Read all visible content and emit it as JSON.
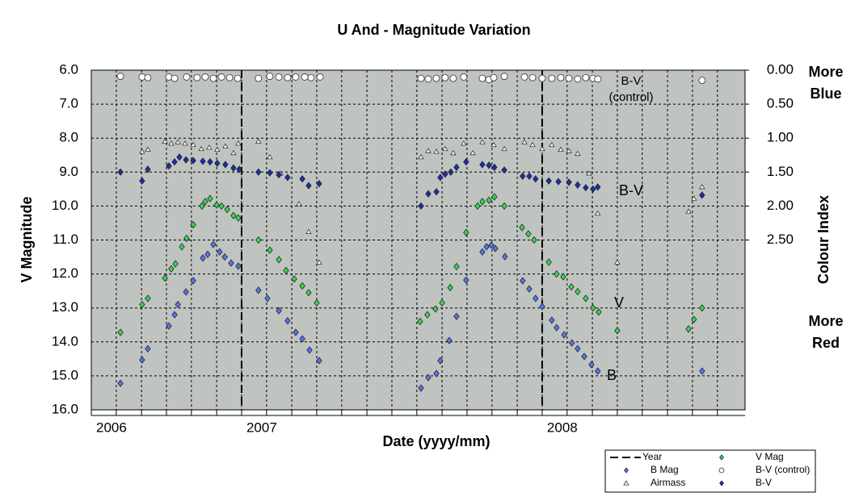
{
  "chart_data": {
    "type": "scatter",
    "title": "U And - Magnitude Variation",
    "xlabel": "Date (yyyy/mm)",
    "ylabel": "V Magnitude",
    "y2label": "Colour Index",
    "xlim": [
      2006.5,
      2008.675
    ],
    "xticks": [
      {
        "value": 2006.5,
        "label": "2006"
      },
      {
        "value": 2007,
        "label": "2007"
      },
      {
        "value": 2008,
        "label": "2008"
      }
    ],
    "xgrid": [
      2006.5,
      2006.583,
      2006.667,
      2006.75,
      2006.833,
      2006.917,
      2007,
      2007.083,
      2007.167,
      2007.25,
      2007.333,
      2007.417,
      2007.5,
      2007.583,
      2007.667,
      2007.75,
      2007.833,
      2007.917,
      2008,
      2008.083,
      2008.167,
      2008.25,
      2008.333,
      2008.417,
      2008.5,
      2008.583
    ],
    "ylim": [
      6,
      16
    ],
    "y_inverted": true,
    "yticks": [
      {
        "value": 6,
        "label": "6.0"
      },
      {
        "value": 7,
        "label": "7.0"
      },
      {
        "value": 8,
        "label": "8.0"
      },
      {
        "value": 9,
        "label": "9.0"
      },
      {
        "value": 10,
        "label": "10.0"
      },
      {
        "value": 11,
        "label": "11.0"
      },
      {
        "value": 12,
        "label": "12.0"
      },
      {
        "value": 13,
        "label": "13.0"
      },
      {
        "value": 14,
        "label": "14.0"
      },
      {
        "value": 15,
        "label": "15.0"
      },
      {
        "value": 16,
        "label": "16.0"
      }
    ],
    "y2lim": [
      0,
      5
    ],
    "y2ticks": [
      {
        "value": 0,
        "label": "0.00"
      },
      {
        "value": 0.5,
        "label": "0.50"
      },
      {
        "value": 1,
        "label": "1.00"
      },
      {
        "value": 1.5,
        "label": "1.50"
      },
      {
        "value": 2,
        "label": "2.00"
      },
      {
        "value": 2.5,
        "label": "2.50"
      }
    ],
    "grid": true,
    "legend": "bottom-right",
    "year_lines": {
      "name": "Year",
      "color": "#000000",
      "x": [
        2007,
        2008
      ]
    },
    "annotations": {
      "control": [
        "B-V",
        "(control)"
      ],
      "bv": "B-V",
      "v": "V",
      "b": "B",
      "blue": [
        "More",
        "Blue"
      ],
      "red": [
        "More",
        "Red"
      ]
    },
    "series": [
      {
        "name": "V Mag",
        "color": "#33dd44",
        "marker": "diamond",
        "x": [
          2006.597,
          2006.669,
          2006.688,
          2006.745,
          2006.766,
          2006.78,
          2006.801,
          2006.817,
          2006.839,
          2006.868,
          2006.879,
          2006.895,
          2006.917,
          2006.933,
          2006.952,
          2006.973,
          2006.989,
          2007.056,
          2007.094,
          2007.124,
          2007.148,
          2007.175,
          2007.202,
          2007.223,
          2007.25,
          2007.594,
          2007.618,
          2007.645,
          2007.667,
          2007.694,
          2007.715,
          2007.747,
          2007.785,
          2007.801,
          2007.823,
          2007.841,
          2007.874,
          2007.933,
          2007.954,
          2007.973,
          2008.022,
          2008.048,
          2008.07,
          2008.097,
          2008.118,
          2008.145,
          2008.169,
          2008.188,
          2008.25,
          2008.487,
          2008.505,
          2008.532
        ],
        "values": [
          13.72,
          12.9,
          12.72,
          12.12,
          11.85,
          11.7,
          11.2,
          10.95,
          10.55,
          10.0,
          9.87,
          9.78,
          9.97,
          10.0,
          10.1,
          10.28,
          10.35,
          11.0,
          11.3,
          11.58,
          11.9,
          12.15,
          12.35,
          12.55,
          12.85,
          13.4,
          13.2,
          13.03,
          12.85,
          12.4,
          11.78,
          10.78,
          10.0,
          9.87,
          9.83,
          9.73,
          10.0,
          10.63,
          10.82,
          11.0,
          11.65,
          12.0,
          12.08,
          12.38,
          12.52,
          12.72,
          13.0,
          13.12,
          13.67,
          13.62,
          13.34,
          13.0
        ]
      },
      {
        "name": "B Mag",
        "color": "#5577ee",
        "marker": "diamond",
        "x": [
          2006.597,
          2006.669,
          2006.688,
          2006.758,
          2006.777,
          2006.788,
          2006.815,
          2006.839,
          2006.871,
          2006.887,
          2006.906,
          2006.927,
          2006.944,
          2006.965,
          2006.989,
          2007.056,
          2007.086,
          2007.124,
          2007.153,
          2007.18,
          2007.202,
          2007.226,
          2007.258,
          2007.597,
          2007.621,
          2007.648,
          2007.661,
          2007.691,
          2007.715,
          2007.747,
          2007.801,
          2007.815,
          2007.831,
          2007.844,
          2007.876,
          2007.935,
          2007.957,
          2007.978,
          2008.0,
          2008.032,
          2008.048,
          2008.073,
          2008.099,
          2008.118,
          2008.14,
          2008.164,
          2008.185,
          2008.532
        ],
        "values": [
          15.22,
          14.53,
          14.2,
          13.53,
          13.2,
          12.9,
          12.53,
          12.2,
          11.53,
          11.42,
          11.13,
          11.35,
          11.5,
          11.68,
          11.77,
          12.48,
          12.72,
          13.08,
          13.38,
          13.72,
          13.91,
          14.24,
          14.55,
          15.36,
          15.05,
          14.93,
          14.55,
          13.96,
          13.25,
          12.18,
          11.35,
          11.2,
          11.15,
          11.25,
          11.49,
          12.2,
          12.44,
          12.72,
          12.96,
          13.36,
          13.58,
          13.79,
          14.03,
          14.2,
          14.43,
          14.67,
          14.86,
          14.86
        ]
      },
      {
        "name": "B-V (control)",
        "color": "#ffffff",
        "marker": "circle",
        "axis": "y2",
        "x": [
          2006.597,
          2006.669,
          2006.688,
          2006.758,
          2006.777,
          2006.817,
          2006.852,
          2006.879,
          2006.906,
          2006.933,
          2006.96,
          2006.987,
          2007.056,
          2007.094,
          2007.124,
          2007.153,
          2007.18,
          2007.21,
          2007.231,
          2007.261,
          2007.597,
          2007.621,
          2007.648,
          2007.677,
          2007.704,
          2007.739,
          2007.801,
          2007.823,
          2007.839,
          2007.874,
          2007.941,
          2007.968,
          2008.0,
          2008.032,
          2008.062,
          2008.089,
          2008.118,
          2008.145,
          2008.169,
          2008.185,
          2008.532
        ],
        "values": [
          0.09,
          0.1,
          0.11,
          0.1,
          0.12,
          0.1,
          0.11,
          0.1,
          0.12,
          0.1,
          0.11,
          0.12,
          0.12,
          0.09,
          0.1,
          0.11,
          0.1,
          0.1,
          0.11,
          0.1,
          0.12,
          0.13,
          0.12,
          0.11,
          0.12,
          0.1,
          0.12,
          0.14,
          0.11,
          0.09,
          0.1,
          0.11,
          0.12,
          0.12,
          0.11,
          0.12,
          0.13,
          0.11,
          0.12,
          0.13,
          0.15
        ]
      },
      {
        "name": "Airmass",
        "color": "#ffffff",
        "marker": "triangle",
        "axis": "y2",
        "x": [
          2006.669,
          2006.688,
          2006.745,
          2006.766,
          2006.788,
          2006.812,
          2006.839,
          2006.866,
          2006.892,
          2006.919,
          2006.946,
          2006.973,
          2006.989,
          2007.056,
          2007.094,
          2007.129,
          2007.191,
          2007.223,
          2007.258,
          2007.597,
          2007.621,
          2007.648,
          2007.677,
          2007.704,
          2007.739,
          2007.769,
          2007.801,
          2007.839,
          2007.874,
          2007.941,
          2007.968,
          2008.0,
          2008.032,
          2008.062,
          2008.089,
          2008.118,
          2008.156,
          2008.185,
          2008.25,
          2008.487,
          2008.505,
          2008.532
        ],
        "values": [
          1.2,
          1.17,
          1.05,
          1.08,
          1.06,
          1.08,
          1.1,
          1.16,
          1.14,
          1.17,
          1.12,
          1.22,
          1.08,
          1.05,
          1.28,
          1.52,
          1.97,
          2.38,
          2.83,
          1.28,
          1.19,
          1.2,
          1.16,
          1.22,
          1.08,
          1.22,
          1.06,
          1.1,
          1.16,
          1.06,
          1.1,
          1.16,
          1.1,
          1.17,
          1.19,
          1.23,
          1.52,
          2.11,
          2.83,
          2.08,
          1.89,
          1.72
        ]
      },
      {
        "name": "B-V",
        "color": "#1a30a8",
        "marker": "diamond",
        "axis": "y2",
        "x": [
          2006.597,
          2006.669,
          2006.688,
          2006.758,
          2006.777,
          2006.793,
          2006.815,
          2006.839,
          2006.871,
          2006.895,
          2006.919,
          2006.946,
          2006.973,
          2006.992,
          2007.056,
          2007.094,
          2007.124,
          2007.153,
          2007.202,
          2007.223,
          2007.258,
          2007.597,
          2007.621,
          2007.648,
          2007.661,
          2007.677,
          2007.696,
          2007.715,
          2007.747,
          2007.801,
          2007.823,
          2007.841,
          2007.874,
          2007.935,
          2007.957,
          2007.978,
          2008.022,
          2008.054,
          2008.089,
          2008.118,
          2008.145,
          2008.169,
          2008.185,
          2008.532
        ],
        "values": [
          1.5,
          1.63,
          1.46,
          1.41,
          1.35,
          1.28,
          1.32,
          1.33,
          1.34,
          1.35,
          1.37,
          1.39,
          1.44,
          1.46,
          1.5,
          1.51,
          1.54,
          1.58,
          1.6,
          1.7,
          1.67,
          2.0,
          1.82,
          1.79,
          1.58,
          1.53,
          1.5,
          1.43,
          1.35,
          1.39,
          1.4,
          1.43,
          1.47,
          1.56,
          1.56,
          1.6,
          1.63,
          1.64,
          1.65,
          1.69,
          1.73,
          1.75,
          1.72,
          1.84
        ]
      }
    ]
  }
}
